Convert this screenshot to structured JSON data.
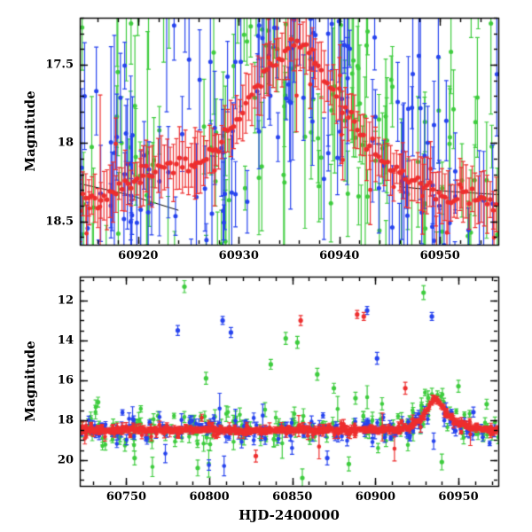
{
  "figure": {
    "background": "#ffffff",
    "axis_color": "#000000"
  },
  "colors": {
    "red": "#ee2e2e",
    "green": "#3ecc3e",
    "blue": "#2643ee"
  },
  "chart_data": [
    {
      "type": "scatter",
      "panel": "top",
      "title": "",
      "xlabel": "",
      "ylabel": "Magnitude",
      "xlim": [
        60914.2,
        60955.8
      ],
      "ylim_mag": [
        17.2,
        18.65
      ],
      "x_major_ticks": [
        60920,
        60930,
        60940,
        60950
      ],
      "x_tick_labels": [
        "60920",
        "60930",
        "60940",
        "60950"
      ],
      "x_minor_step": 2,
      "y_major_ticks": [
        17.5,
        18,
        18.5
      ],
      "y_tick_labels": [
        "17.5",
        "18",
        "18.5"
      ],
      "y_minor_step": 0.1,
      "grid": false,
      "legend": "none",
      "trend": {
        "color": "red",
        "seed": 7,
        "band_step": 0.3,
        "jitter": 0.03,
        "err": [
          0.1,
          0.2
        ],
        "r": 2.7,
        "x": [
          60915,
          60916,
          60917,
          60918,
          60919,
          60920,
          60921,
          60922,
          60923,
          60924,
          60925,
          60926,
          60927,
          60928,
          60929,
          60930,
          60931,
          60932,
          60933,
          60934,
          60935,
          60936,
          60937,
          60938,
          60939,
          60940,
          60941,
          60942,
          60943,
          60944,
          60945,
          60946,
          60947,
          60948,
          60949,
          60950,
          60951,
          60952,
          60953,
          60954,
          60955
        ],
        "y": [
          18.35,
          18.37,
          18.34,
          18.3,
          18.27,
          18.24,
          18.2,
          18.16,
          18.13,
          18.1,
          18.12,
          18.14,
          18.08,
          18.0,
          17.93,
          17.84,
          17.74,
          17.63,
          17.52,
          17.44,
          17.39,
          17.36,
          17.42,
          17.52,
          17.62,
          17.72,
          17.82,
          17.92,
          18.02,
          18.09,
          18.14,
          18.19,
          18.24,
          18.28,
          18.31,
          18.33,
          18.35,
          18.36,
          18.35,
          18.36,
          18.38
        ]
      },
      "model_segments": [
        {
          "x": [
            60914.2,
            60919.0,
            60924.0
          ],
          "y": [
            18.26,
            18.33,
            18.43
          ]
        },
        {
          "x": [
            60946.0,
            60951.0,
            60955.8
          ],
          "y": [
            18.28,
            18.31,
            18.33
          ]
        }
      ],
      "scatter": [
        {
          "color": "green",
          "count": 150,
          "sigma": 0.48,
          "err": [
            0.12,
            0.45
          ],
          "seed": 11,
          "r": 2.5,
          "wild_frac": 0.12,
          "wild_range": [
            16.9,
            18.9
          ]
        },
        {
          "color": "blue",
          "count": 150,
          "sigma": 0.42,
          "err": [
            0.1,
            0.42
          ],
          "seed": 22,
          "r": 2.5,
          "wild_frac": 0.12,
          "wild_range": [
            16.9,
            18.9
          ]
        },
        {
          "color": "red",
          "count": 25,
          "sigma": 0.2,
          "err": [
            0.08,
            0.25
          ],
          "seed": 33,
          "r": 2.4,
          "wild_frac": 0.04,
          "wild_range": [
            17.3,
            18.7
          ]
        }
      ],
      "outliers": []
    },
    {
      "type": "scatter",
      "panel": "bottom",
      "title": "",
      "xlabel": "HJD-2400000",
      "ylabel": "Magnitude",
      "xlim": [
        60722,
        60974
      ],
      "ylim_mag": [
        10.8,
        21.3
      ],
      "x_major_ticks": [
        60750,
        60800,
        60850,
        60900,
        60950
      ],
      "x_tick_labels": [
        "60750",
        "60800",
        "60850",
        "60900",
        "60950"
      ],
      "x_minor_step": 10,
      "y_major_ticks": [
        12,
        14,
        16,
        18,
        20
      ],
      "y_tick_labels": [
        "12",
        "14",
        "16",
        "18",
        "20"
      ],
      "y_minor_step": 0.5,
      "grid": false,
      "legend": "none",
      "trend": {
        "color": "red",
        "seed": 17,
        "band_step": 0.8,
        "jitter": 0.05,
        "err": [
          0.08,
          0.16
        ],
        "r": 2.4,
        "x": [
          60725,
          60740,
          60760,
          60780,
          60800,
          60820,
          60840,
          60860,
          60880,
          60895,
          60905,
          60915,
          60922,
          60928,
          60932,
          60936,
          60940,
          60944,
          60948,
          60952,
          60958,
          60964,
          60970
        ],
        "y": [
          18.5,
          18.52,
          18.48,
          18.5,
          18.47,
          18.52,
          18.5,
          18.48,
          18.5,
          18.45,
          18.5,
          18.45,
          18.3,
          17.9,
          17.3,
          16.85,
          17.3,
          17.75,
          18.05,
          18.2,
          18.35,
          18.45,
          18.5
        ]
      },
      "model_segments": [],
      "scatter": [
        {
          "color": "green",
          "count": 190,
          "sigma": 0.45,
          "err": [
            0.12,
            0.4
          ],
          "seed": 101,
          "r": 2.3,
          "wild_frac": 0.05,
          "wild_range": [
            16.8,
            20.5
          ]
        },
        {
          "color": "blue",
          "count": 190,
          "sigma": 0.3,
          "err": [
            0.1,
            0.32
          ],
          "seed": 202,
          "r": 2.3,
          "wild_frac": 0.04,
          "wild_range": [
            17.0,
            20.8
          ]
        },
        {
          "color": "red",
          "count": 160,
          "sigma": 0.18,
          "err": [
            0.08,
            0.24
          ],
          "seed": 303,
          "r": 2.3,
          "wild_frac": 0.02,
          "wild_range": [
            17.4,
            19.8
          ]
        }
      ],
      "outliers": [
        {
          "color": "green",
          "x": 60733,
          "y": 17.1,
          "err": 0.25
        },
        {
          "color": "green",
          "x": 60785,
          "y": 11.3,
          "err": 0.3
        },
        {
          "color": "green",
          "x": 60798,
          "y": 15.9,
          "err": 0.3
        },
        {
          "color": "green",
          "x": 60837,
          "y": 15.2,
          "err": 0.25
        },
        {
          "color": "green",
          "x": 60846,
          "y": 13.9,
          "err": 0.3
        },
        {
          "color": "green",
          "x": 60853,
          "y": 14.1,
          "err": 0.3
        },
        {
          "color": "green",
          "x": 60865,
          "y": 15.7,
          "err": 0.3
        },
        {
          "color": "green",
          "x": 60875,
          "y": 16.4,
          "err": 0.25
        },
        {
          "color": "green",
          "x": 60888,
          "y": 16.9,
          "err": 0.3
        },
        {
          "color": "green",
          "x": 60929,
          "y": 11.6,
          "err": 0.35
        },
        {
          "color": "green",
          "x": 60950,
          "y": 16.3,
          "err": 0.3
        },
        {
          "color": "green",
          "x": 60967,
          "y": 17.2,
          "err": 0.25
        },
        {
          "color": "green",
          "x": 60793,
          "y": 20.4,
          "err": 0.4
        },
        {
          "color": "green",
          "x": 60856,
          "y": 20.9,
          "err": 0.45
        },
        {
          "color": "green",
          "x": 60884,
          "y": 20.2,
          "err": 0.35
        },
        {
          "color": "green",
          "x": 60940,
          "y": 20.1,
          "err": 0.4
        },
        {
          "color": "green",
          "x": 60755,
          "y": 19.9,
          "err": 0.35
        },
        {
          "color": "blue",
          "x": 60781,
          "y": 13.5,
          "err": 0.25
        },
        {
          "color": "blue",
          "x": 60808,
          "y": 13.0,
          "err": 0.2
        },
        {
          "color": "blue",
          "x": 60813,
          "y": 13.6,
          "err": 0.25
        },
        {
          "color": "blue",
          "x": 60895,
          "y": 12.5,
          "err": 0.2
        },
        {
          "color": "blue",
          "x": 60901,
          "y": 14.9,
          "err": 0.3
        },
        {
          "color": "blue",
          "x": 60934,
          "y": 12.8,
          "err": 0.2
        },
        {
          "color": "blue",
          "x": 60959,
          "y": 17.6,
          "err": 0.25
        },
        {
          "color": "blue",
          "x": 60871,
          "y": 19.9,
          "err": 0.35
        },
        {
          "color": "red",
          "x": 60855,
          "y": 13.0,
          "err": 0.25
        },
        {
          "color": "red",
          "x": 60889,
          "y": 12.7,
          "err": 0.2
        },
        {
          "color": "red",
          "x": 60893,
          "y": 12.8,
          "err": 0.2
        },
        {
          "color": "red",
          "x": 60918,
          "y": 16.4,
          "err": 0.3
        },
        {
          "color": "red",
          "x": 60828,
          "y": 19.8,
          "err": 0.3
        }
      ]
    }
  ]
}
